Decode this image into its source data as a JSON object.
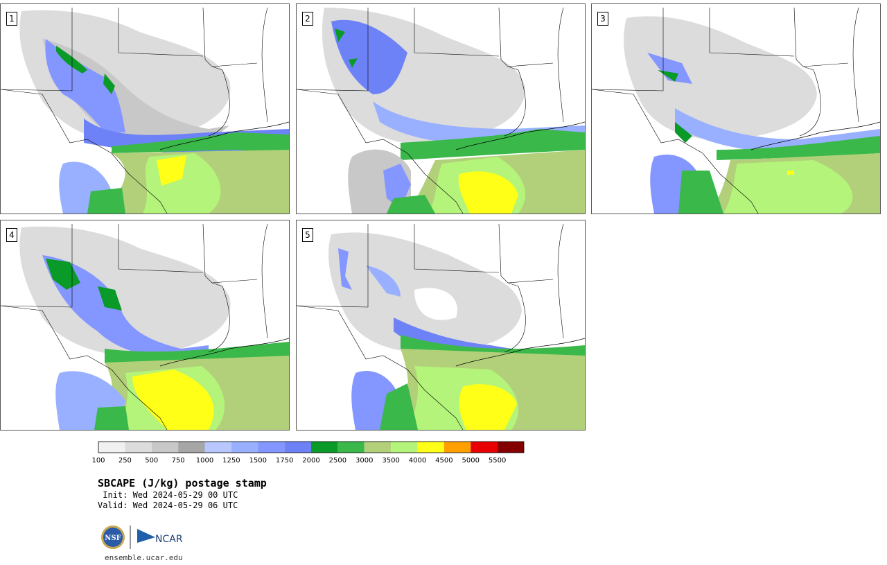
{
  "title": "SBCAPE (J/kg) postage stamp",
  "init_text": " Init: Wed 2024-05-29 00 UTC",
  "valid_text": "Valid: Wed 2024-05-29 06 UTC",
  "site": "ensemble.ucar.edu",
  "logo_nsf_text": "NSF",
  "logo_ncar_text": "NCAR",
  "members": [
    "1",
    "2",
    "3",
    "4",
    "5"
  ],
  "colorbar": {
    "unit": "J/kg",
    "ticks": [
      "100",
      "250",
      "500",
      "750",
      "1000",
      "1250",
      "1500",
      "1750",
      "2000",
      "2500",
      "3000",
      "3500",
      "4000",
      "4500",
      "5000",
      "5500"
    ],
    "colors": [
      "#f1f1f1",
      "#dcdcdc",
      "#c8c8c8",
      "#a6a6a6",
      "#b8c8ff",
      "#98b0ff",
      "#8496ff",
      "#6e82f7",
      "#0a9a28",
      "#3ab84a",
      "#b2d07a",
      "#b4f47a",
      "#ffff18",
      "#ffa000",
      "#e80000",
      "#840000"
    ]
  },
  "colors": {
    "panel_border": "#555555",
    "state_lines": "#000000"
  }
}
